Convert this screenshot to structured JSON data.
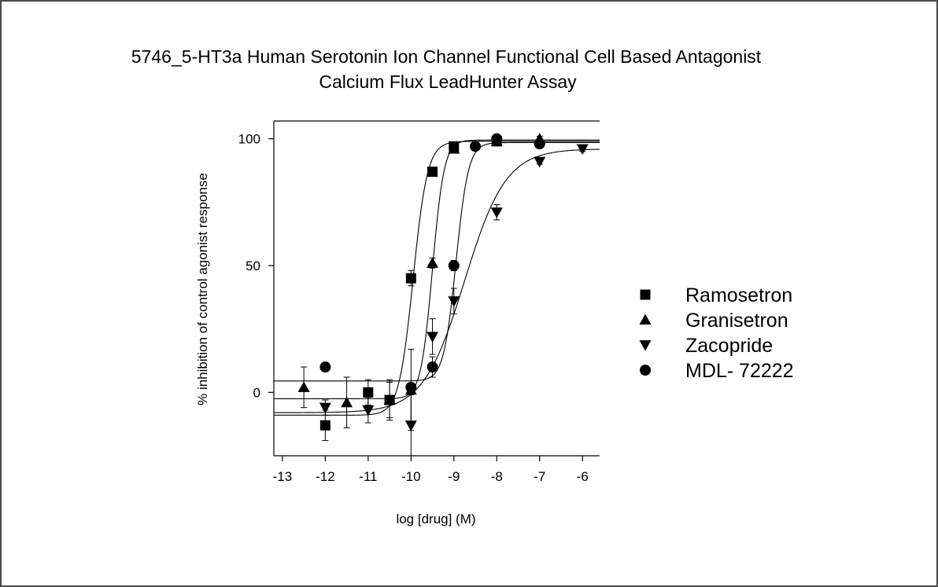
{
  "chart_data": {
    "type": "scatter",
    "title_lines": [
      "5746_5-HT3a Human Serotonin Ion Channel Functional Cell Based Antagonist",
      "Calcium Flux LeadHunter Assay"
    ],
    "xlabel": "log [drug] (M)",
    "ylabel": "% inhibition of  control agonist response",
    "xlim": [
      -13.2,
      -5.6
    ],
    "ylim": [
      -25,
      107
    ],
    "x_ticks": [
      -13,
      -12,
      -11,
      -10,
      -9,
      -8,
      -7,
      -6
    ],
    "x_tick_labels": [
      "-13",
      "-12",
      "-11",
      "-10",
      "-9",
      "-8",
      "-7",
      "-6"
    ],
    "y_ticks": [
      0,
      50,
      100
    ],
    "y_tick_labels": [
      "0",
      "50",
      "100"
    ],
    "legend_position": "right",
    "series": [
      {
        "name": "Ramosetron",
        "marker": "square",
        "points": [
          {
            "x": -12,
            "y": -13,
            "err": 6
          },
          {
            "x": -11,
            "y": 0,
            "err": 5
          },
          {
            "x": -10.5,
            "y": -3,
            "err": 8
          },
          {
            "x": -10,
            "y": 45,
            "err": 3
          },
          {
            "x": -9.5,
            "y": 87,
            "err": 1
          },
          {
            "x": -9,
            "y": 97,
            "err": 1
          },
          {
            "x": -8,
            "y": 99,
            "err": 1
          }
        ],
        "fit": {
          "bottom": -9,
          "top": 99,
          "logec50": -9.95,
          "hill": 2.6
        }
      },
      {
        "name": "Granisetron",
        "marker": "triangle-up",
        "points": [
          {
            "x": -12.5,
            "y": 2,
            "err": 8
          },
          {
            "x": -11.5,
            "y": -4,
            "err": 10
          },
          {
            "x": -10.5,
            "y": -3,
            "err": 7
          },
          {
            "x": -10,
            "y": 1,
            "err": 16
          },
          {
            "x": -9.5,
            "y": 51,
            "err": 2
          },
          {
            "x": -9,
            "y": 96,
            "err": 1
          },
          {
            "x": -8,
            "y": 99,
            "err": 1
          },
          {
            "x": -7,
            "y": 100,
            "err": 1
          }
        ],
        "fit": {
          "bottom": -2.5,
          "top": 99.5,
          "logec50": -9.5,
          "hill": 3.2
        }
      },
      {
        "name": "Zacopride",
        "marker": "triangle-down",
        "points": [
          {
            "x": -12,
            "y": -6,
            "err": 3
          },
          {
            "x": -11,
            "y": -7,
            "err": 5
          },
          {
            "x": -10,
            "y": -13,
            "err": 12
          },
          {
            "x": -9.5,
            "y": 22,
            "err": 7
          },
          {
            "x": -9,
            "y": 36,
            "err": 5
          },
          {
            "x": -8,
            "y": 71,
            "err": 3
          },
          {
            "x": -7,
            "y": 91,
            "err": 1
          },
          {
            "x": -6,
            "y": 96,
            "err": 1
          }
        ],
        "fit": {
          "bottom": -8,
          "top": 96,
          "logec50": -8.75,
          "hill": 0.9
        }
      },
      {
        "name": "MDL- 72222",
        "marker": "circle",
        "points": [
          {
            "x": -12,
            "y": 10,
            "err": 0
          },
          {
            "x": -10,
            "y": 2,
            "err": 0
          },
          {
            "x": -9.5,
            "y": 10,
            "err": 4
          },
          {
            "x": -9,
            "y": 50,
            "err": 2
          },
          {
            "x": -8.5,
            "y": 97,
            "err": 1
          },
          {
            "x": -8,
            "y": 100,
            "err": 1
          },
          {
            "x": -7,
            "y": 98,
            "err": 1
          }
        ],
        "fit": {
          "bottom": 4.5,
          "top": 98.5,
          "logec50": -8.95,
          "hill": 3.0
        }
      }
    ]
  }
}
